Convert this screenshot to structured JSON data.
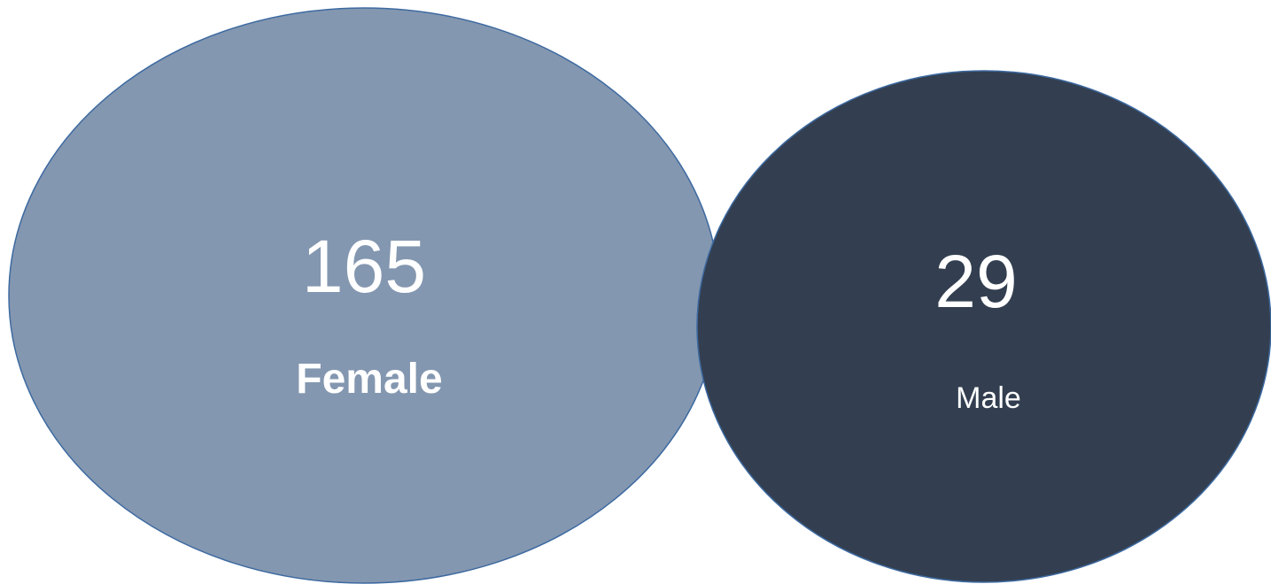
{
  "groups": [
    {
      "label": "Female",
      "count": "165",
      "fill": "#8497b0",
      "stroke": "#3d6aa1"
    },
    {
      "label": "Male",
      "count": "29",
      "fill": "#333f50",
      "stroke": "#3d6aa1"
    }
  ]
}
